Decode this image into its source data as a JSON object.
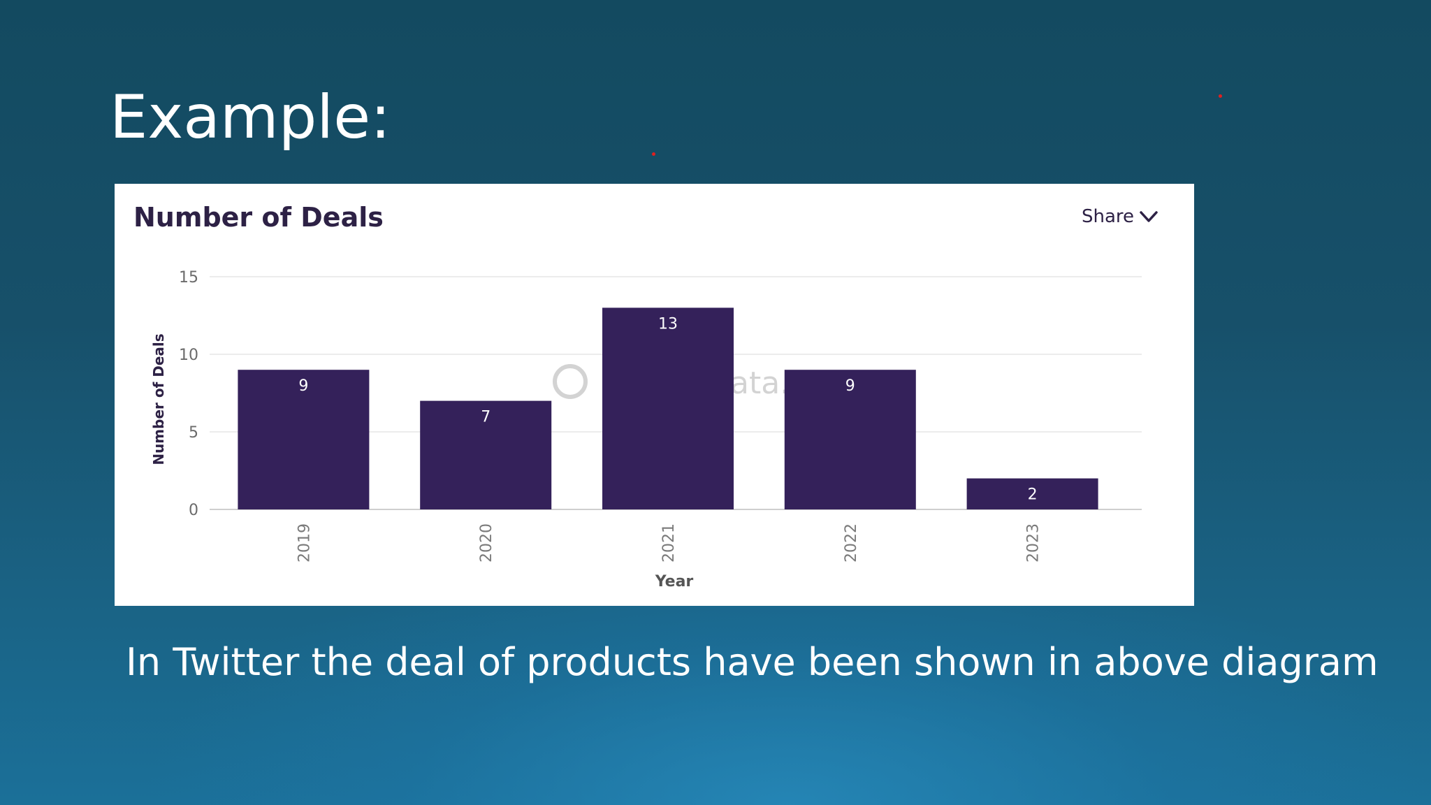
{
  "slide": {
    "title": "Example:",
    "caption": "In Twitter the deal of products have been shown in above diagram",
    "background_color": "#17506a"
  },
  "card": {
    "share_label": "Share",
    "bar_color": "#34215a",
    "watermark_text": "ata."
  },
  "chart_data": {
    "type": "bar",
    "title": "Number of Deals",
    "xlabel": "Year",
    "ylabel": "Number of Deals",
    "categories": [
      "2019",
      "2020",
      "2021",
      "2022",
      "2023"
    ],
    "values": [
      9,
      7,
      13,
      9,
      2
    ],
    "ylim": [
      0,
      15
    ],
    "yticks": [
      0,
      5,
      10,
      15
    ],
    "grid": true,
    "data_labels": true
  }
}
